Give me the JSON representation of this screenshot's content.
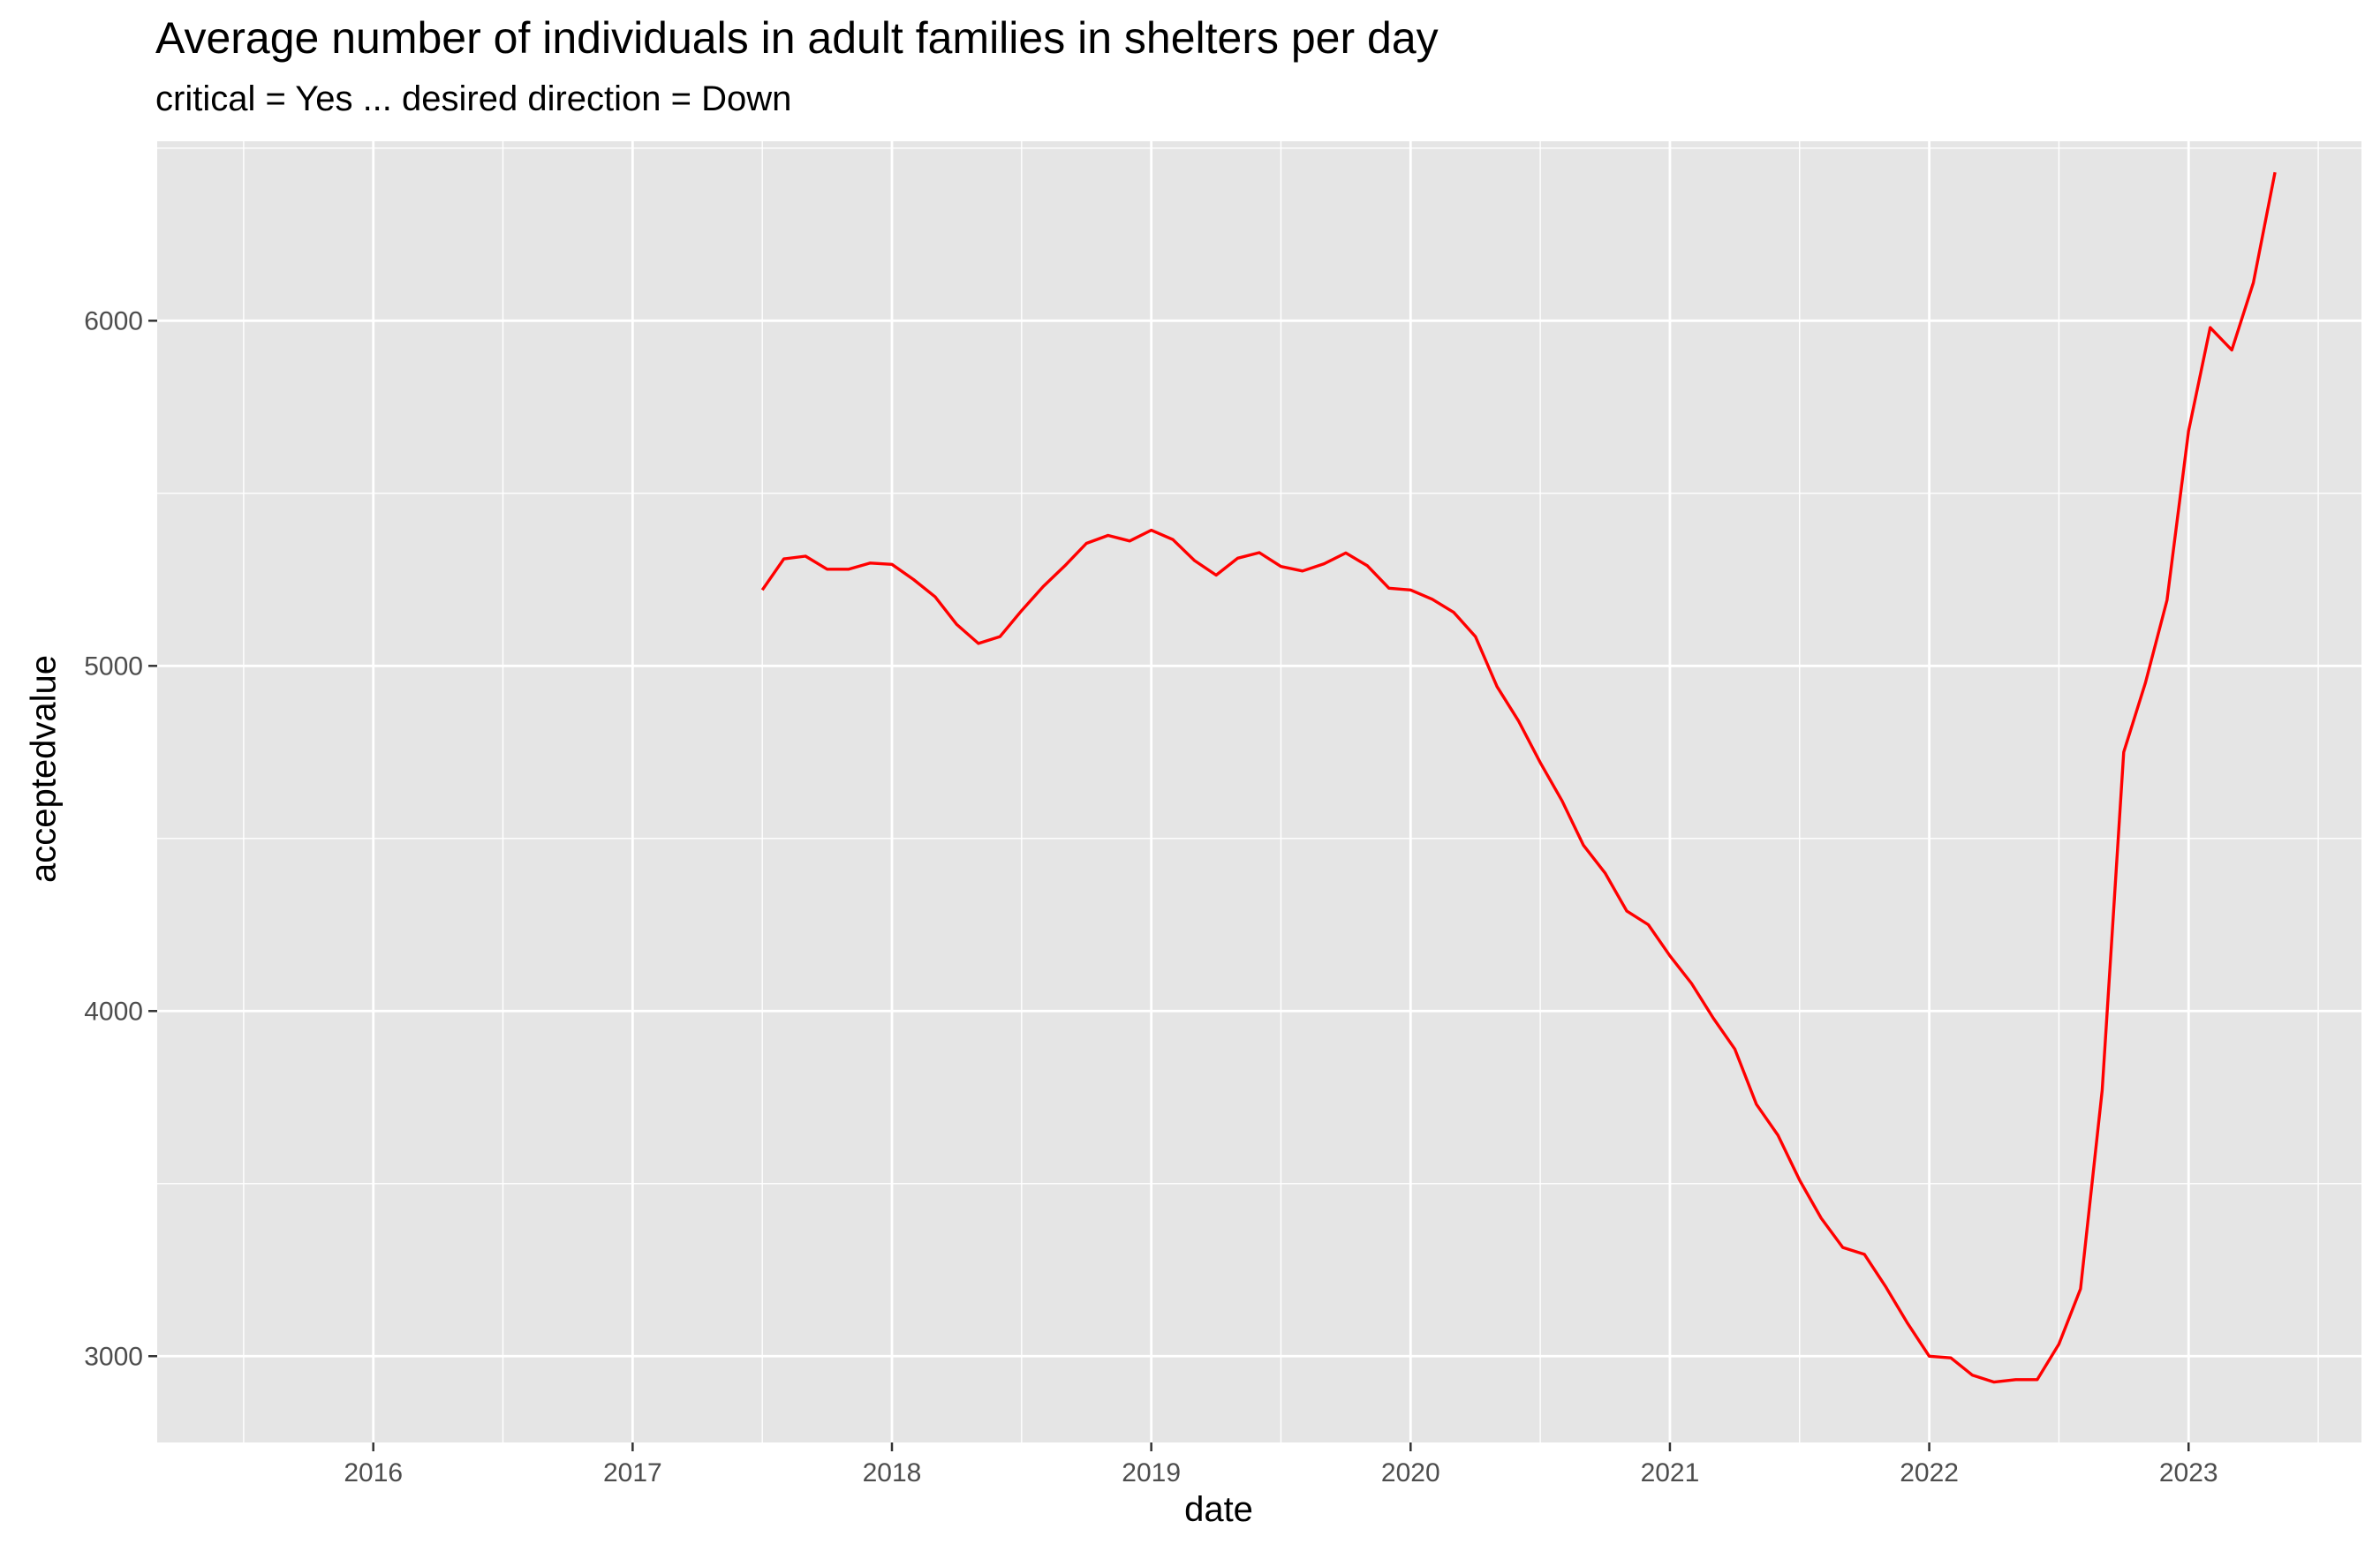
{
  "chart_data": {
    "type": "line",
    "title": "Average number of individuals in adult families in shelters per day",
    "subtitle": "critical = Yes ... desired direction = Down",
    "xlabel": "date",
    "ylabel": "acceptedvalue",
    "x_ticks": [
      "2016",
      "2017",
      "2018",
      "2019",
      "2020",
      "2021",
      "2022",
      "2023"
    ],
    "y_ticks": [
      3000,
      4000,
      5000,
      6000
    ],
    "xlim": [
      "2015-03-01",
      "2023-09-01"
    ],
    "ylim": [
      2750,
      6520
    ],
    "grid": true,
    "line_color": "#ff0000",
    "panel_color": "#e5e5e5",
    "series": [
      {
        "x": [
          "2017-07",
          "2017-08",
          "2017-09",
          "2017-10",
          "2017-11",
          "2017-12",
          "2018-01",
          "2018-02",
          "2018-03",
          "2018-04",
          "2018-05",
          "2018-06",
          "2018-07",
          "2018-08",
          "2018-09",
          "2018-10",
          "2018-11",
          "2018-12",
          "2019-01",
          "2019-02",
          "2019-03",
          "2019-04",
          "2019-05",
          "2019-06",
          "2019-07",
          "2019-08",
          "2019-09",
          "2019-10",
          "2019-11",
          "2019-12",
          "2020-01",
          "2020-02",
          "2020-03",
          "2020-04",
          "2020-05",
          "2020-06",
          "2020-07",
          "2020-08",
          "2020-09",
          "2020-10",
          "2020-11",
          "2020-12",
          "2021-01",
          "2021-02",
          "2021-03",
          "2021-04",
          "2021-05",
          "2021-06",
          "2021-07",
          "2021-08",
          "2021-09",
          "2021-10",
          "2021-11",
          "2021-12",
          "2022-01",
          "2022-02",
          "2022-03",
          "2022-04",
          "2022-05",
          "2022-06",
          "2022-07",
          "2022-08",
          "2022-09",
          "2022-10",
          "2022-11",
          "2022-12",
          "2023-01",
          "2023-02",
          "2023-03",
          "2023-04",
          "2023-05"
        ],
        "y": [
          5220,
          5310,
          5318,
          5280,
          5280,
          5298,
          5294,
          5250,
          5200,
          5120,
          5065,
          5085,
          5160,
          5230,
          5290,
          5355,
          5378,
          5362,
          5393,
          5366,
          5305,
          5263,
          5312,
          5328,
          5288,
          5275,
          5296,
          5327,
          5290,
          5225,
          5220,
          5193,
          5155,
          5085,
          4940,
          4840,
          4720,
          4610,
          4480,
          4400,
          4290,
          4250,
          4160,
          4080,
          3980,
          3890,
          3730,
          3640,
          3510,
          3400,
          3315,
          3295,
          3200,
          3095,
          3000,
          2995,
          2945,
          2925,
          2932,
          2932,
          3035,
          3195,
          3770,
          4750,
          4950,
          5190,
          5680,
          5980,
          5915,
          6110,
          6430
        ]
      }
    ]
  }
}
